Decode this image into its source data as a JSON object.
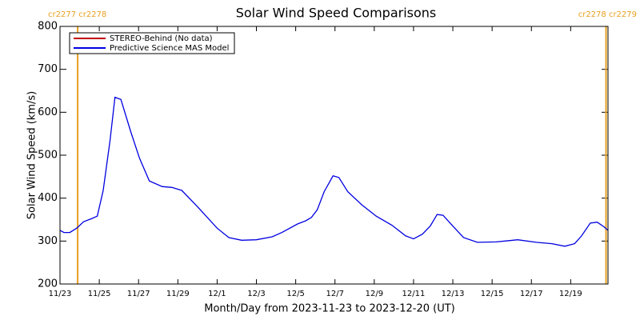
{
  "chart_data": {
    "type": "line",
    "title": "Solar Wind Speed Comparisons",
    "y_label": "Solar Wind Speed (km/s)",
    "x_label": "Month/Day from 2023-11-23 to 2023-12-20 (UT)",
    "xlim": [
      0,
      27.9
    ],
    "xticks": [
      {
        "value": 0,
        "label": "11/23"
      },
      {
        "value": 2,
        "label": "11/25"
      },
      {
        "value": 4,
        "label": "11/27"
      },
      {
        "value": 6,
        "label": "11/29"
      },
      {
        "value": 8,
        "label": "12/1"
      },
      {
        "value": 10,
        "label": "12/3"
      },
      {
        "value": 12,
        "label": "12/5"
      },
      {
        "value": 14,
        "label": "12/7"
      },
      {
        "value": 16,
        "label": "12/9"
      },
      {
        "value": 18,
        "label": "12/11"
      },
      {
        "value": 20,
        "label": "12/13"
      },
      {
        "value": 22,
        "label": "12/15"
      },
      {
        "value": 24,
        "label": "12/17"
      },
      {
        "value": 26,
        "label": "12/19"
      }
    ],
    "ylim": [
      200,
      800
    ],
    "yticks": [
      200,
      300,
      400,
      500,
      600,
      700,
      800
    ],
    "markers": [
      {
        "x": 0.9,
        "label": "cr2277 cr2278"
      },
      {
        "x": 27.8,
        "label": "cr2278 cr2279"
      }
    ],
    "marker_color": "#e8a020",
    "legend": "upper left",
    "series": [
      {
        "name": "STEREO-Behind (No data)",
        "color": "#c00000",
        "x": [],
        "values": []
      },
      {
        "name": "Predictive Science MAS Model",
        "color": "#0000e0",
        "x": [
          0,
          0.2,
          0.5,
          0.85,
          1.2,
          1.6,
          1.9,
          2.2,
          2.55,
          2.8,
          3.1,
          3.6,
          4.05,
          4.55,
          5.2,
          5.7,
          6.2,
          7.0,
          8.0,
          8.6,
          9.25,
          10.0,
          10.8,
          11.3,
          12.1,
          12.5,
          12.8,
          13.1,
          13.45,
          13.9,
          14.2,
          14.65,
          15.35,
          16.1,
          16.9,
          17.6,
          18.0,
          18.45,
          18.85,
          19.2,
          19.5,
          20.0,
          20.55,
          21.25,
          22.2,
          23.3,
          24.25,
          25.05,
          25.7,
          26.2,
          26.55,
          27.0,
          27.35,
          27.7,
          27.9
        ],
        "values": [
          325,
          320,
          320,
          330,
          345,
          352,
          358,
          418,
          535,
          635,
          630,
          555,
          493,
          440,
          427,
          425,
          418,
          380,
          330,
          308,
          302,
          303,
          310,
          320,
          340,
          347,
          355,
          373,
          415,
          452,
          448,
          415,
          385,
          358,
          337,
          312,
          305,
          316,
          335,
          362,
          360,
          335,
          308,
          297,
          298,
          303,
          297,
          294,
          288,
          294,
          312,
          342,
          344,
          333,
          325
        ]
      }
    ]
  }
}
